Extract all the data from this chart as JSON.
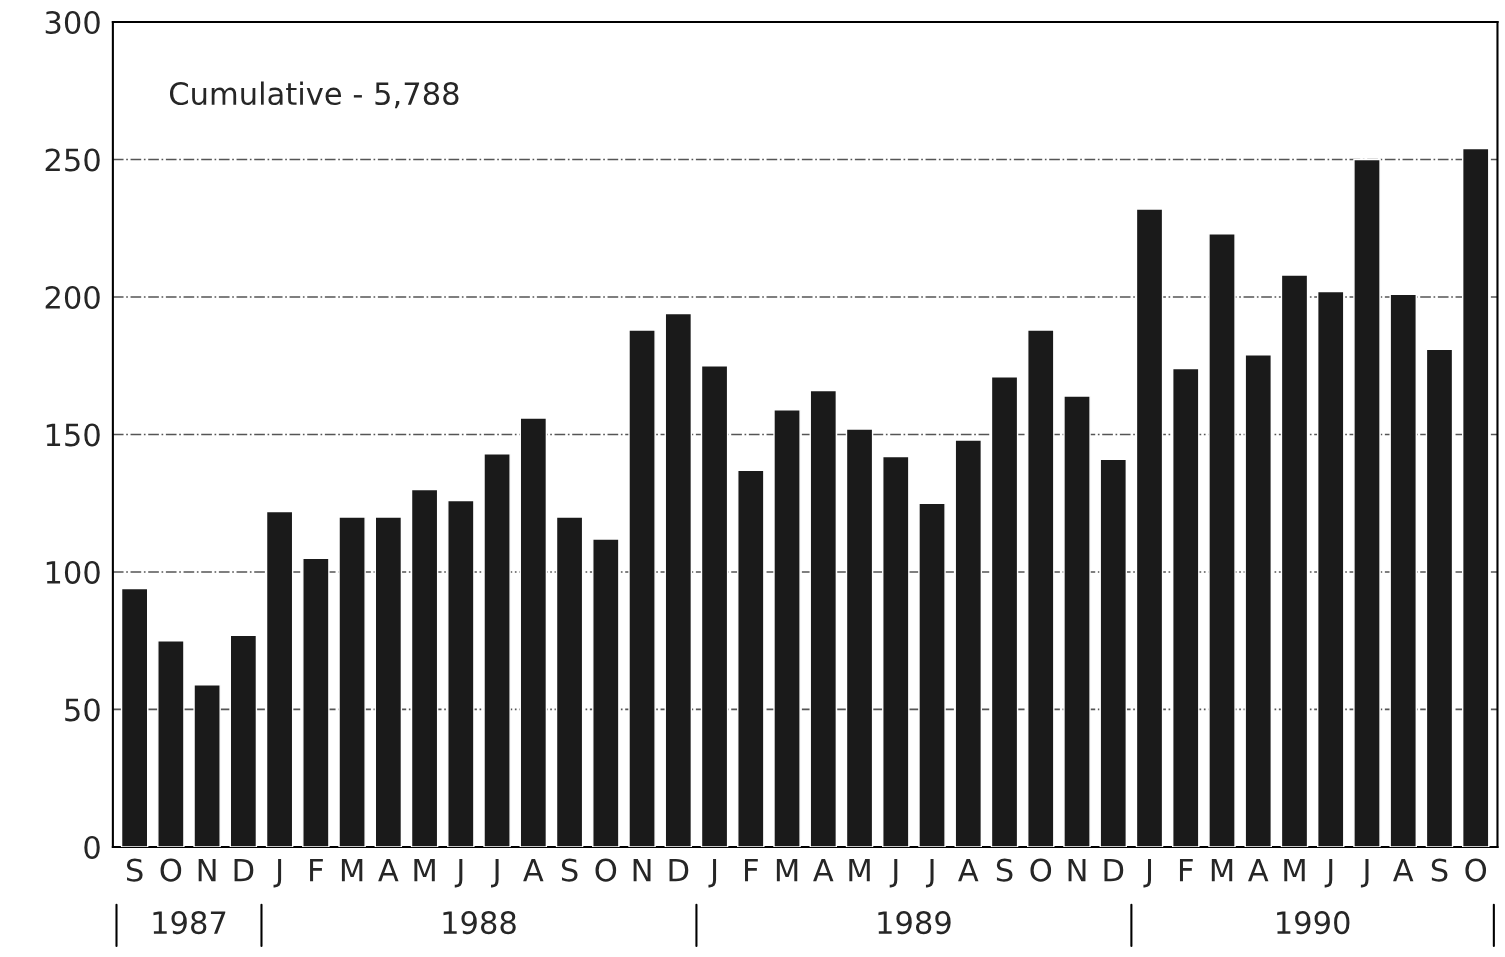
{
  "chart_data": {
    "type": "bar",
    "categories": [
      "S",
      "O",
      "N",
      "D",
      "J",
      "F",
      "M",
      "A",
      "M",
      "J",
      "J",
      "A",
      "S",
      "O",
      "N",
      "D",
      "J",
      "F",
      "M",
      "A",
      "M",
      "J",
      "J",
      "A",
      "S",
      "O",
      "N",
      "D",
      "J",
      "F",
      "M",
      "A",
      "M",
      "J",
      "J",
      "A",
      "S",
      "O"
    ],
    "values": [
      94,
      75,
      59,
      77,
      122,
      105,
      120,
      120,
      130,
      126,
      143,
      156,
      120,
      112,
      188,
      194,
      175,
      137,
      159,
      166,
      152,
      142,
      125,
      148,
      171,
      188,
      164,
      141,
      232,
      174,
      223,
      179,
      208,
      202,
      250,
      201,
      181,
      254
    ],
    "color": "#1a1a1a",
    "ylim": [
      0,
      300
    ],
    "yticks": [
      0,
      50,
      100,
      150,
      200,
      250,
      300
    ],
    "grid": "y",
    "annotations": [
      "Cumulative - 5,788",
      "1987",
      "1988",
      "1989",
      "1990"
    ]
  }
}
